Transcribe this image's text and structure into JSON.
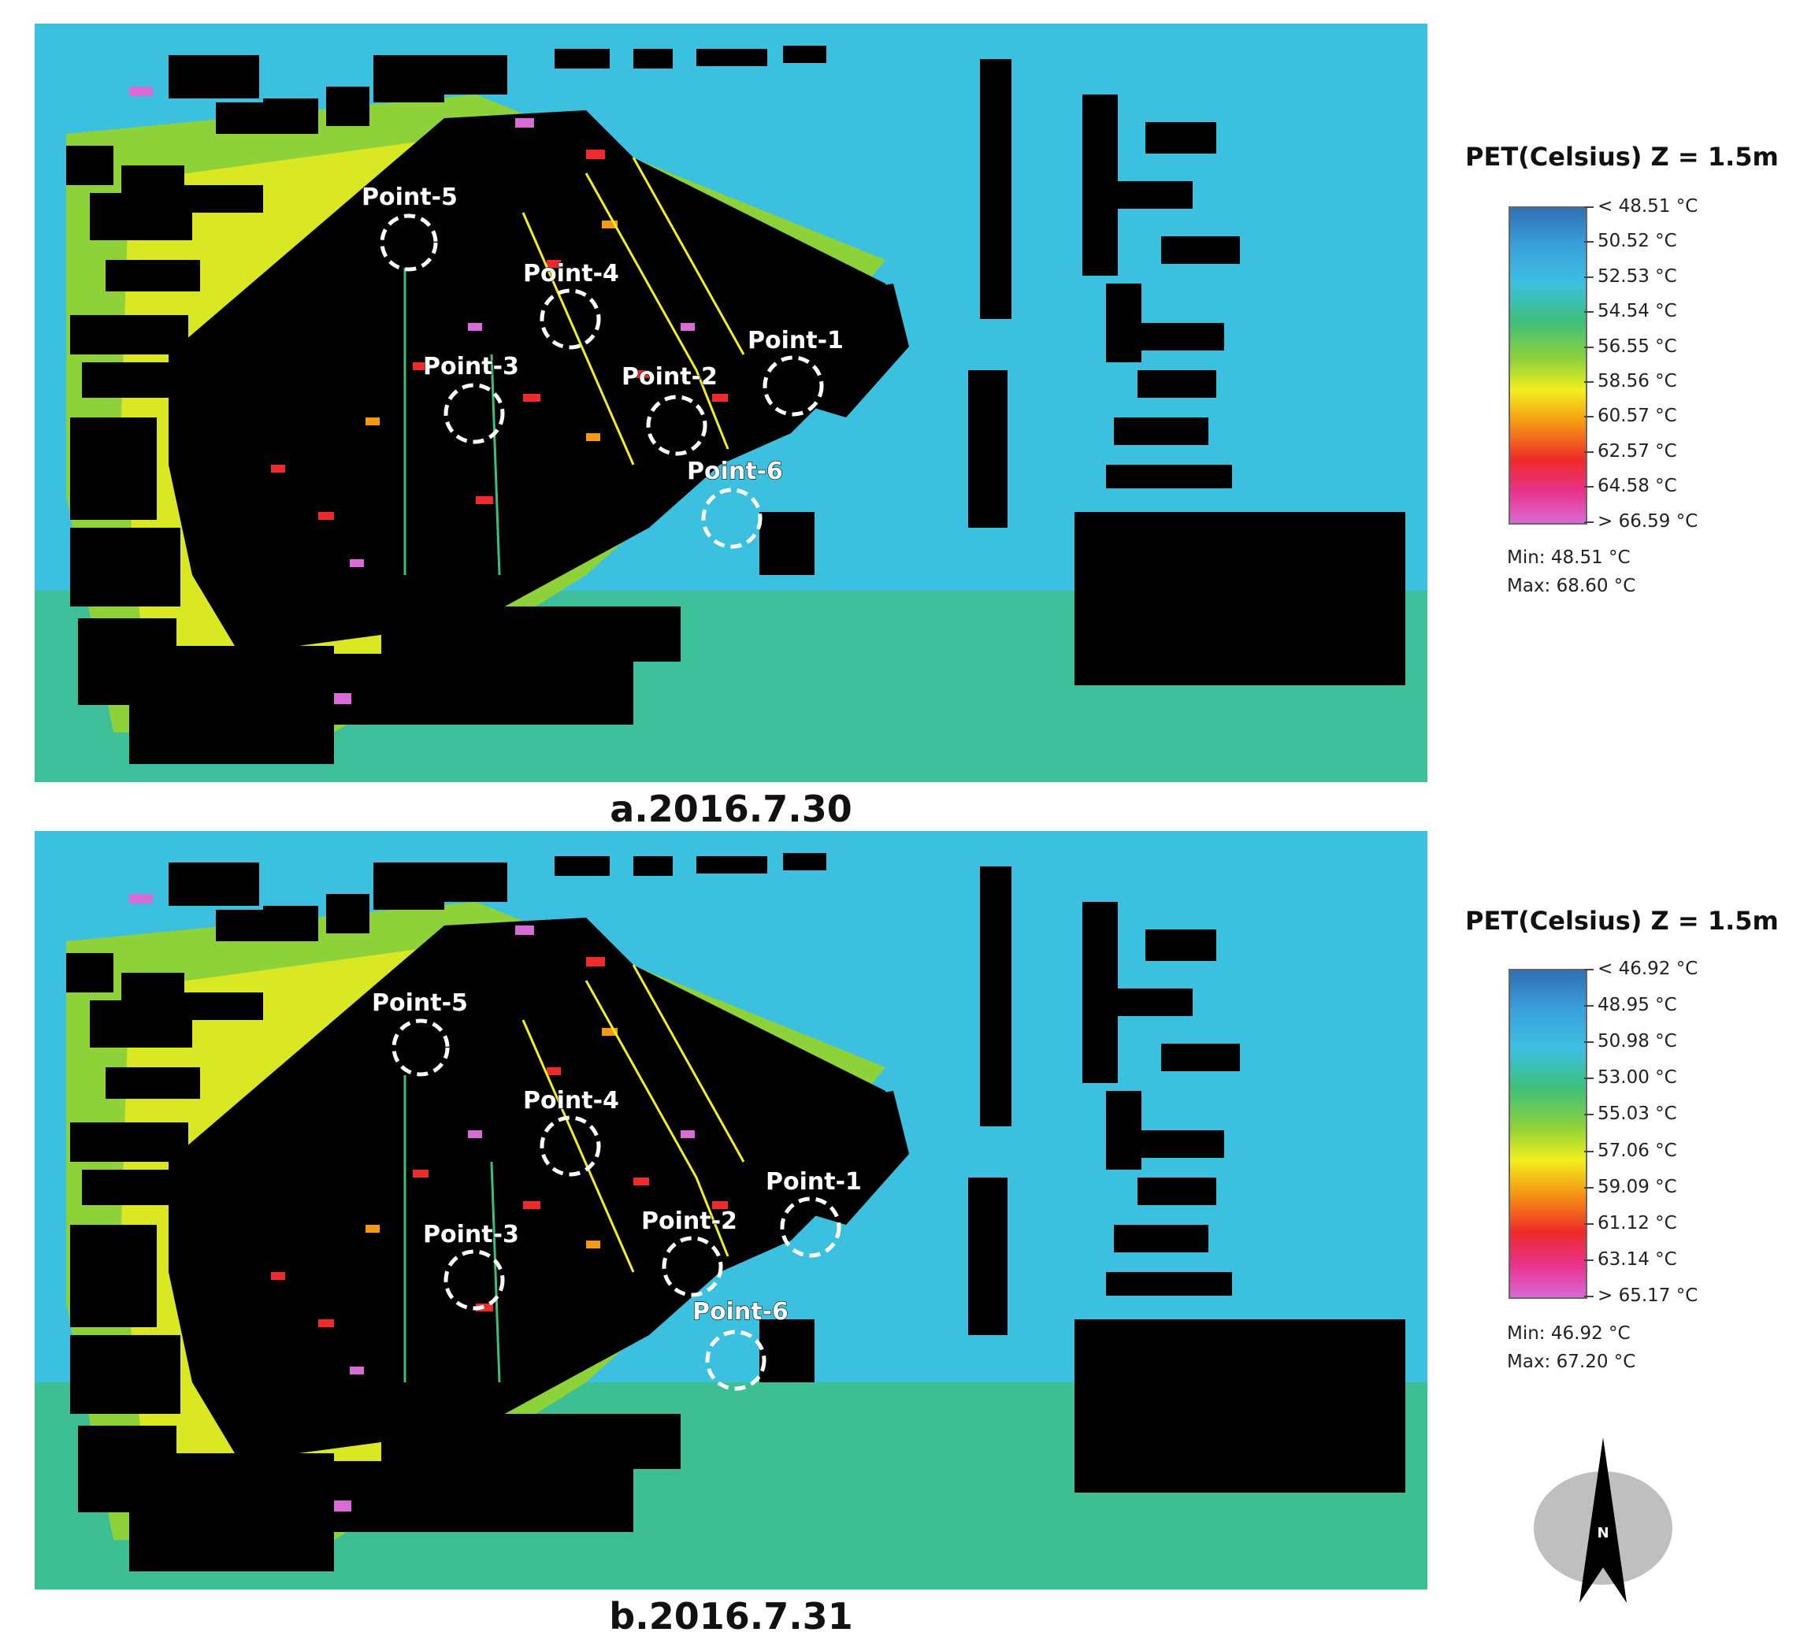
{
  "colors": {
    "ramp": [
      "#2e6fb3",
      "#3aa0dc",
      "#3cc0e0",
      "#3dbf7a",
      "#8ed23a",
      "#f3ef1e",
      "#f59a12",
      "#ee2a2a",
      "#e8328a",
      "#d96ad6"
    ],
    "building": "#000000",
    "background_field": "#3cc0e0",
    "marker": "#ffffff"
  },
  "panels": [
    {
      "caption": "a.2016.7.30",
      "legend": {
        "title": "PET(Celsius) Z = 1.5m",
        "ticks": [
          "< 48.51 °C",
          "50.52  °C",
          "52.53  °C",
          "54.54  °C",
          "56.55  °C",
          "58.56  °C",
          "60.57  °C",
          "62.57  °C",
          "64.58  °C",
          "> 66.59 °C"
        ],
        "min": "Min: 48.51 °C",
        "max": "Max: 68.60 °C"
      },
      "points": [
        "Point-1",
        "Point-2",
        "Point-3",
        "Point-4",
        "Point-5",
        "Point-6"
      ]
    },
    {
      "caption": "b.2016.7.31",
      "legend": {
        "title": "PET(Celsius) Z = 1.5m",
        "ticks": [
          "< 46.92 °C",
          "48.95 °C",
          "50.98 °C",
          "53.00 °C",
          "55.03 °C",
          "57.06 °C",
          "59.09 °C",
          "61.12 °C",
          "63.14 °C",
          "> 65.17 °C"
        ],
        "min": "Min: 46.92 °C",
        "max": "Max: 67.20 °C"
      },
      "points": [
        "Point-1",
        "Point-2",
        "Point-3",
        "Point-4",
        "Point-5",
        "Point-6"
      ]
    }
  ],
  "compass": {
    "label": "N",
    "icon": "north-arrow-icon"
  }
}
